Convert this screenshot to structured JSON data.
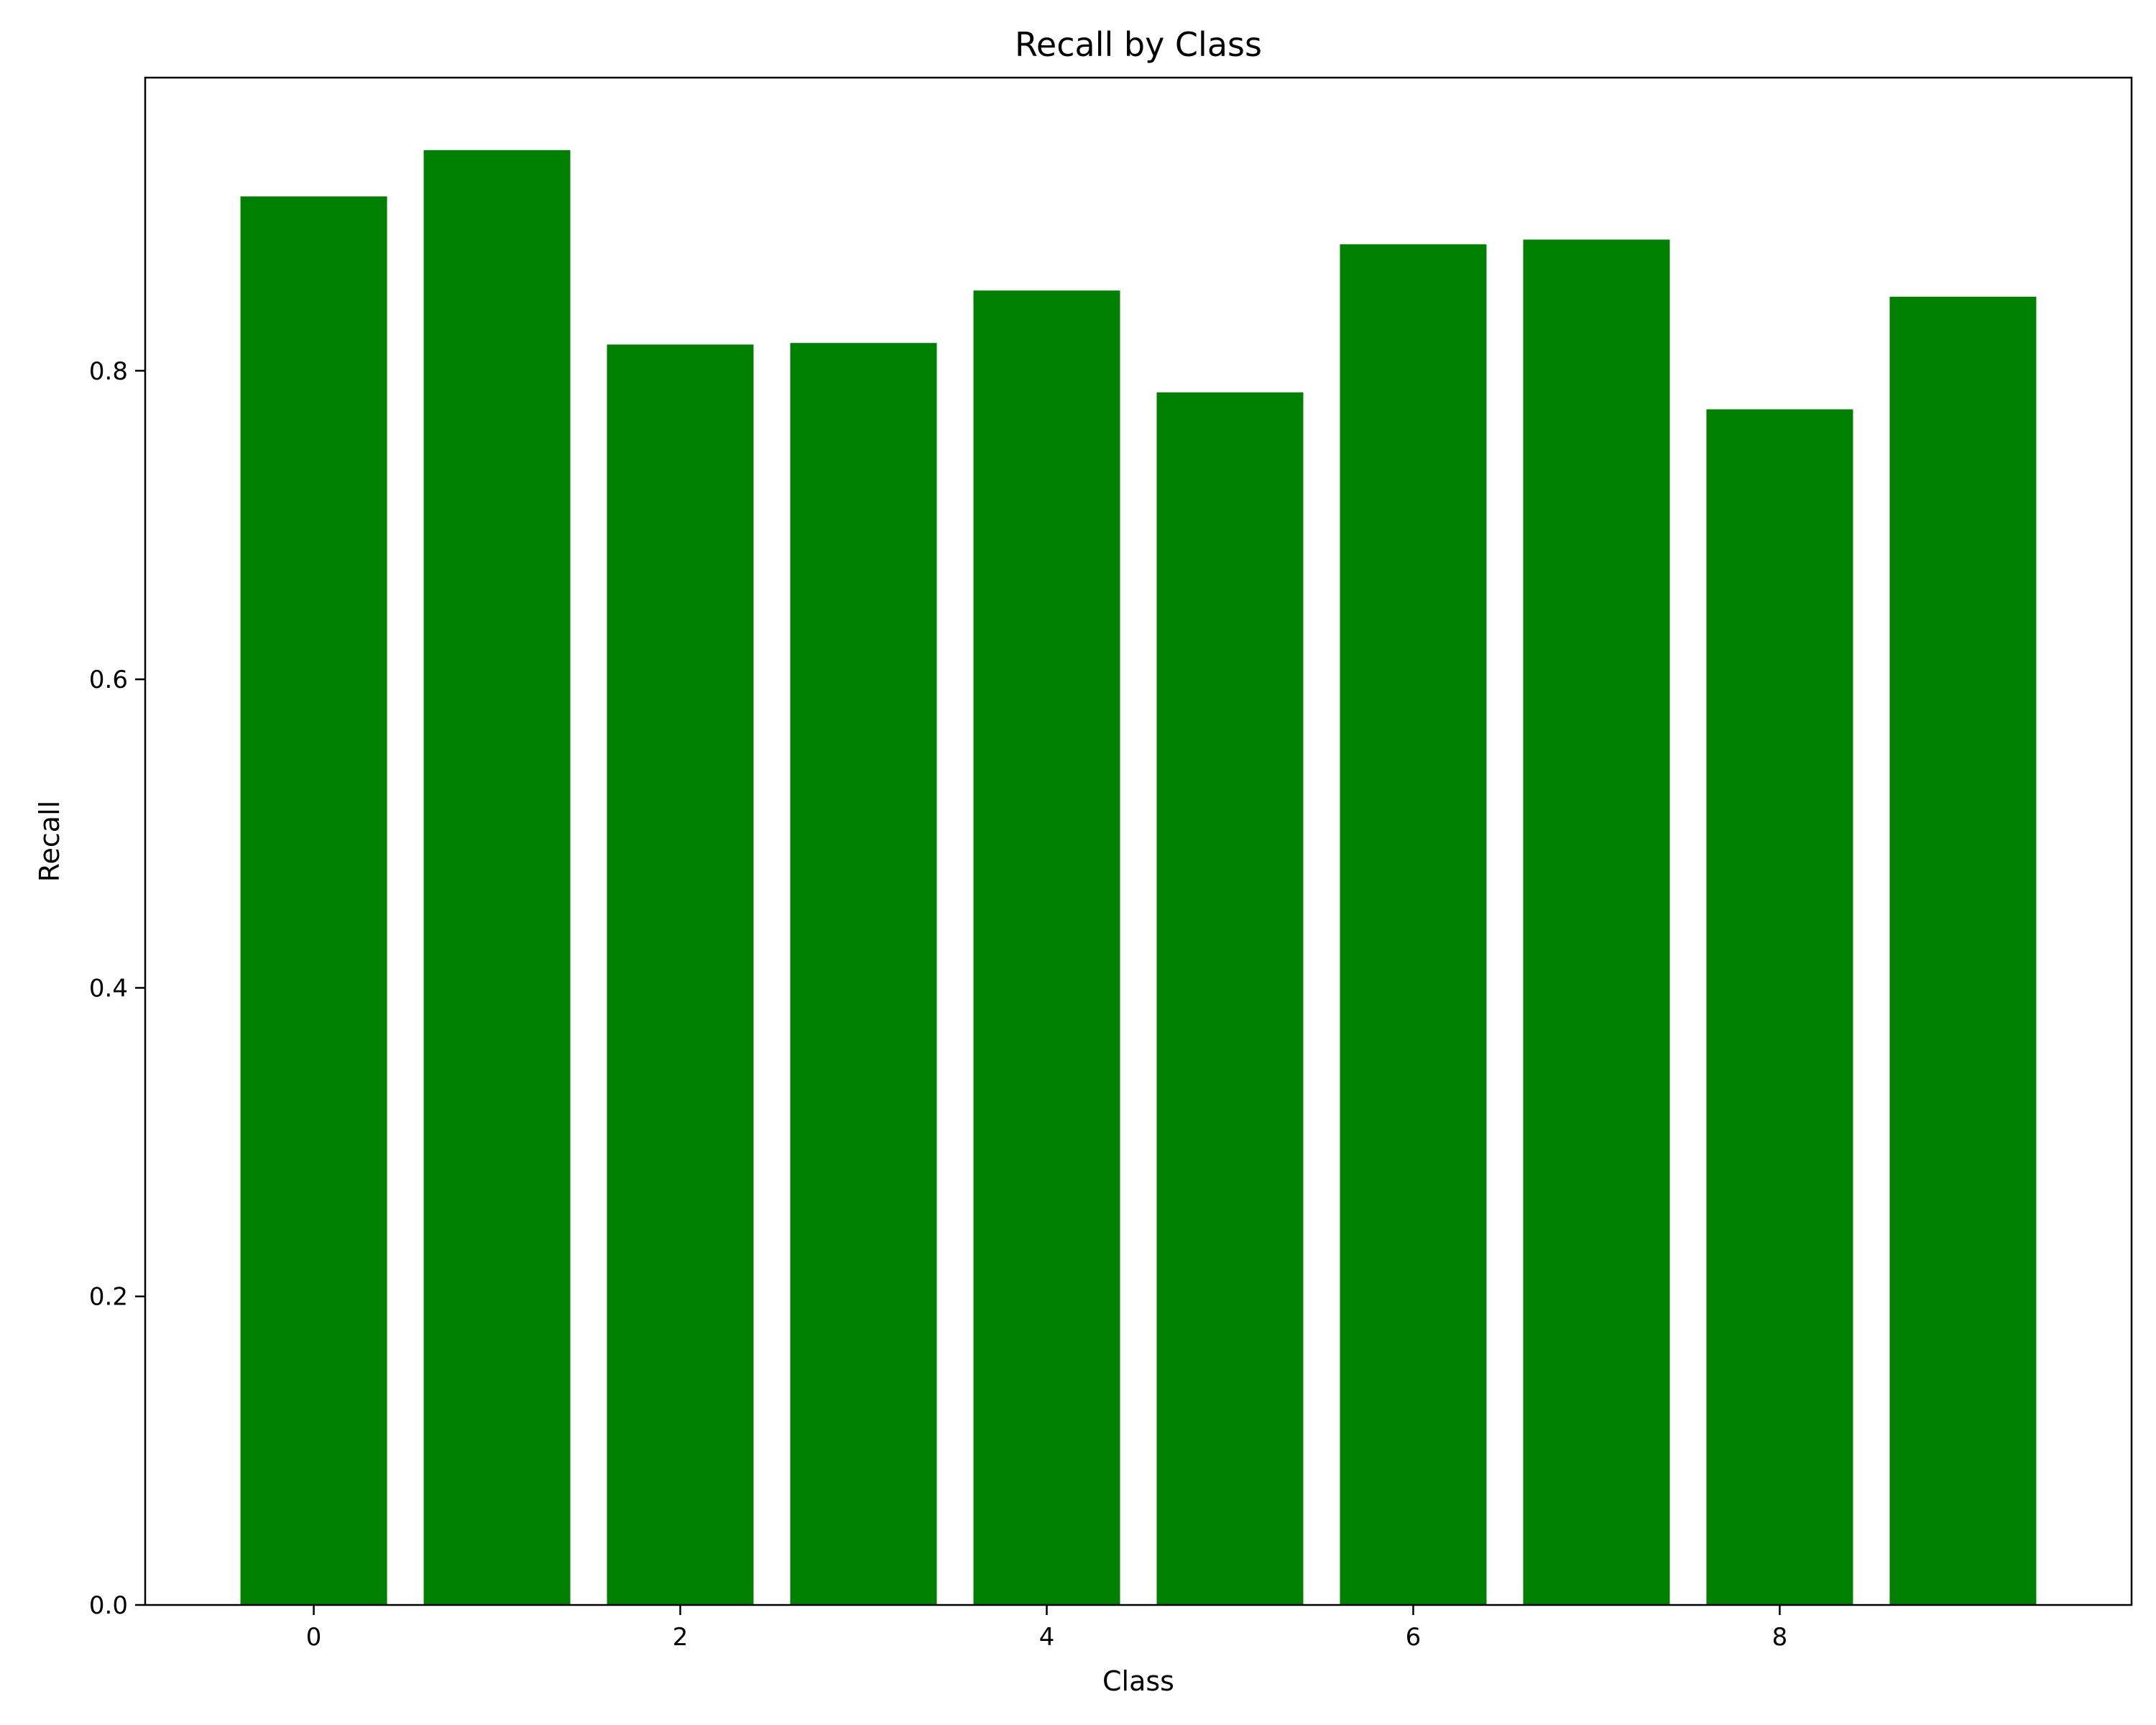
{
  "chart_data": {
    "type": "bar",
    "title": "Recall by Class",
    "xlabel": "Class",
    "ylabel": "Recall",
    "categories": [
      0,
      1,
      2,
      3,
      4,
      5,
      6,
      7,
      8,
      9
    ],
    "values": [
      0.913,
      0.943,
      0.817,
      0.818,
      0.852,
      0.786,
      0.882,
      0.885,
      0.775,
      0.848
    ],
    "xlim": [
      -0.92,
      9.92
    ],
    "ylim": [
      0,
      0.99
    ],
    "xticks": [
      0,
      2,
      4,
      6,
      8
    ],
    "yticks": [
      0.0,
      0.2,
      0.4,
      0.6,
      0.8
    ],
    "ytick_labels": [
      "0.0",
      "0.2",
      "0.4",
      "0.6",
      "0.8"
    ],
    "xtick_labels": [
      "0",
      "2",
      "4",
      "6",
      "8"
    ],
    "bar_color": "#008000",
    "grid": false,
    "legend": null
  }
}
